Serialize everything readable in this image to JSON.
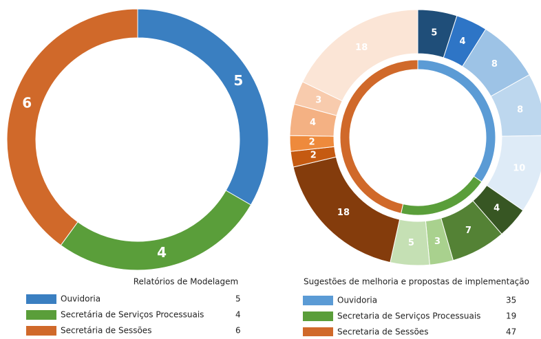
{
  "chart_data": [
    {
      "type": "donut",
      "title": "Relatórios de Modelagem",
      "categories": [
        "Ouvidoria",
        "Secretária de Serviços Processuais",
        "Secretária de Sessões"
      ],
      "values": [
        5,
        4,
        6
      ],
      "colors": [
        "#3a7fc1",
        "#5a9e3a",
        "#d0692a"
      ]
    },
    {
      "type": "nested-donut",
      "title": "Sugestões de melhoria e propostas de implementação",
      "categories": [
        "Ouvidoria",
        "Secretaria de Serviços Processuais",
        "Secretaria de Sessões"
      ],
      "values": [
        35,
        19,
        47
      ],
      "colors": [
        "#5b9bd5",
        "#5a9e3a",
        "#d0692a"
      ],
      "outer_values": [
        5,
        4,
        8,
        8,
        10,
        4,
        7,
        3,
        5,
        18,
        2,
        2,
        4,
        3,
        18
      ],
      "outer_colors": [
        "#1f4e79",
        "#2e75c6",
        "#9dc3e6",
        "#bdd7ee",
        "#deebf7",
        "#375623",
        "#548235",
        "#a9d18e",
        "#c5e0b4",
        "#843c0c",
        "#c55a11",
        "#ee8a3c",
        "#f4b183",
        "#f8cbad",
        "#fbe5d6"
      ]
    }
  ]
}
